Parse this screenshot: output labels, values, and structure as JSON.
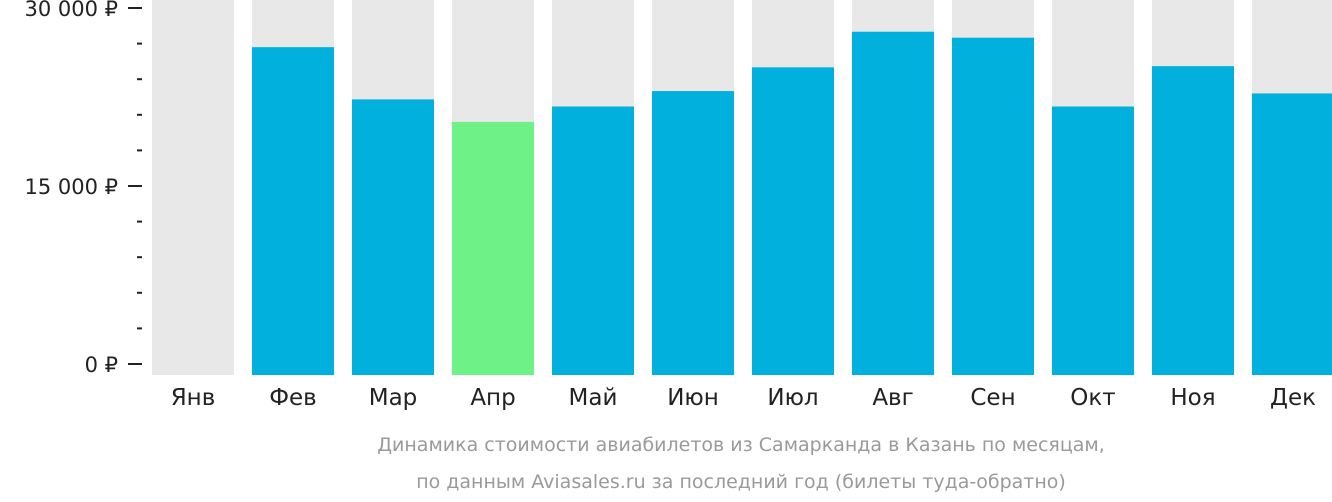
{
  "chart_data": {
    "type": "bar",
    "categories": [
      "Янв",
      "Фев",
      "Мар",
      "Апр",
      "Май",
      "Июн",
      "Июл",
      "Авг",
      "Сен",
      "Окт",
      "Ноя",
      "Дек"
    ],
    "values": [
      null,
      26700,
      22300,
      20400,
      21700,
      23000,
      25000,
      28000,
      27500,
      21700,
      25100,
      22800
    ],
    "highlight_category": "Апр",
    "ylim": [
      0,
      30000
    ],
    "y_ticks": [
      {
        "value": 0,
        "label": "0 ₽"
      },
      {
        "value": 15000,
        "label": "15 000 ₽"
      },
      {
        "value": 30000,
        "label": "30 000 ₽"
      }
    ],
    "y_minor_step": 3000,
    "title": "",
    "xlabel": "",
    "ylabel": "",
    "caption_lines": [
      "Динамика стоимости авиабилетов из Самарканда в Казань по месяцам,",
      "по данным Aviasales.ru за последний год (билеты туда-обратно)"
    ],
    "grid": false,
    "legend": "none",
    "colors": {
      "bar": "#02b0dd",
      "highlight": "#6ef287",
      "track": "#e8e8e8",
      "axis": "#222222",
      "caption": "#9a9a9a"
    }
  }
}
